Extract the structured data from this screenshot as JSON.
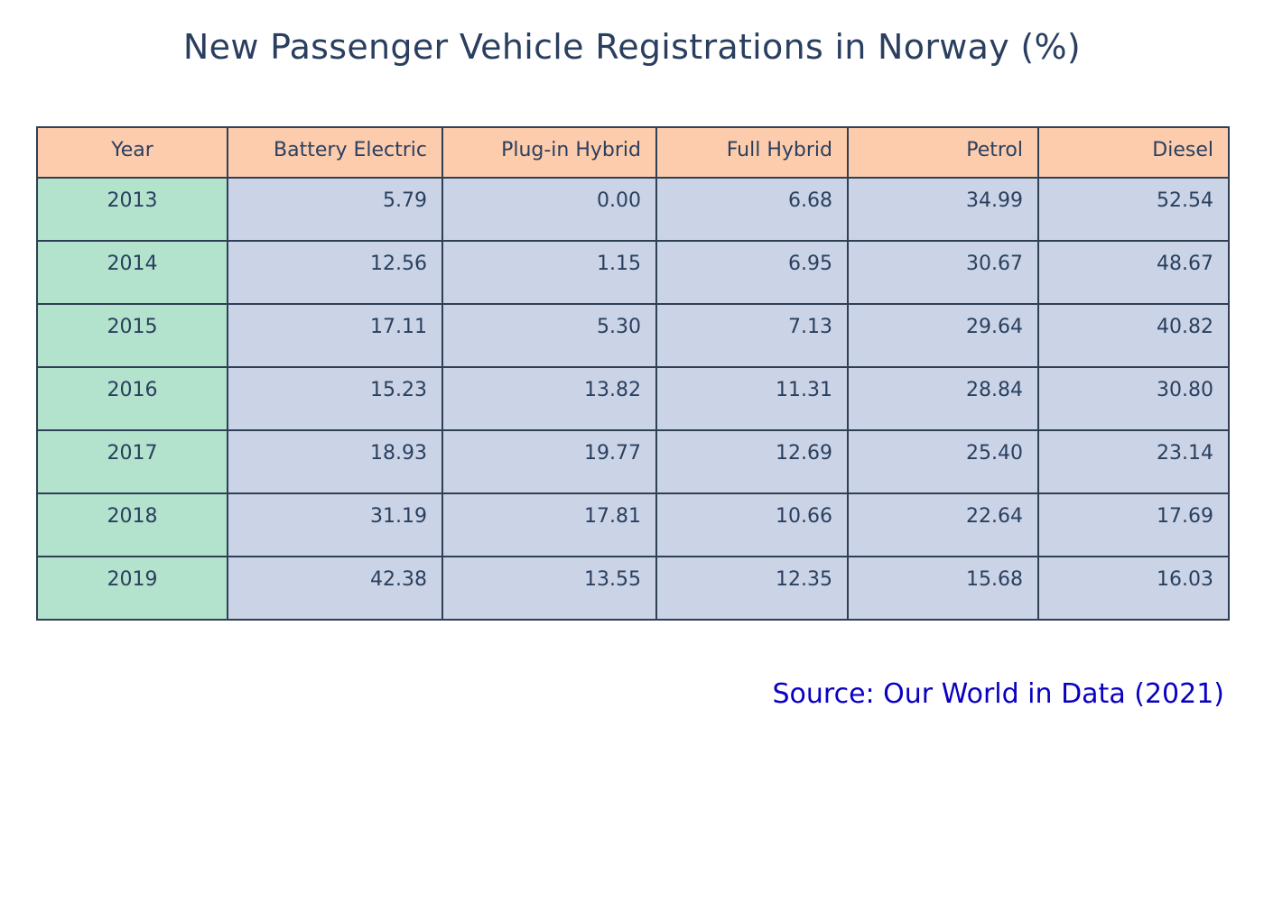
{
  "chart_data": {
    "type": "table",
    "title": "New Passenger Vehicle Registrations in Norway (%)",
    "columns": [
      "Year",
      "Battery Electric",
      "Plug-in Hybrid",
      "Full Hybrid",
      "Petrol",
      "Diesel"
    ],
    "rows": [
      [
        "2013",
        "5.79",
        "0.00",
        "6.68",
        "34.99",
        "52.54"
      ],
      [
        "2014",
        "12.56",
        "1.15",
        "6.95",
        "30.67",
        "48.67"
      ],
      [
        "2015",
        "17.11",
        "5.30",
        "7.13",
        "29.64",
        "40.82"
      ],
      [
        "2016",
        "15.23",
        "13.82",
        "11.31",
        "28.84",
        "30.80"
      ],
      [
        "2017",
        "18.93",
        "19.77",
        "12.69",
        "25.40",
        "23.14"
      ],
      [
        "2018",
        "31.19",
        "17.81",
        "10.66",
        "22.64",
        "17.69"
      ],
      [
        "2019",
        "42.38",
        "13.55",
        "12.35",
        "15.68",
        "16.03"
      ]
    ],
    "annotations": [
      "Source: Our World in Data (2021)"
    ],
    "colors": {
      "header_fill": "#fcccac",
      "year_fill": "#b3e2cd",
      "cell_fill": "#cad4e6",
      "border": "#2f3f55",
      "text": "#2a3f5f",
      "source_text": "#0a00c2"
    }
  }
}
